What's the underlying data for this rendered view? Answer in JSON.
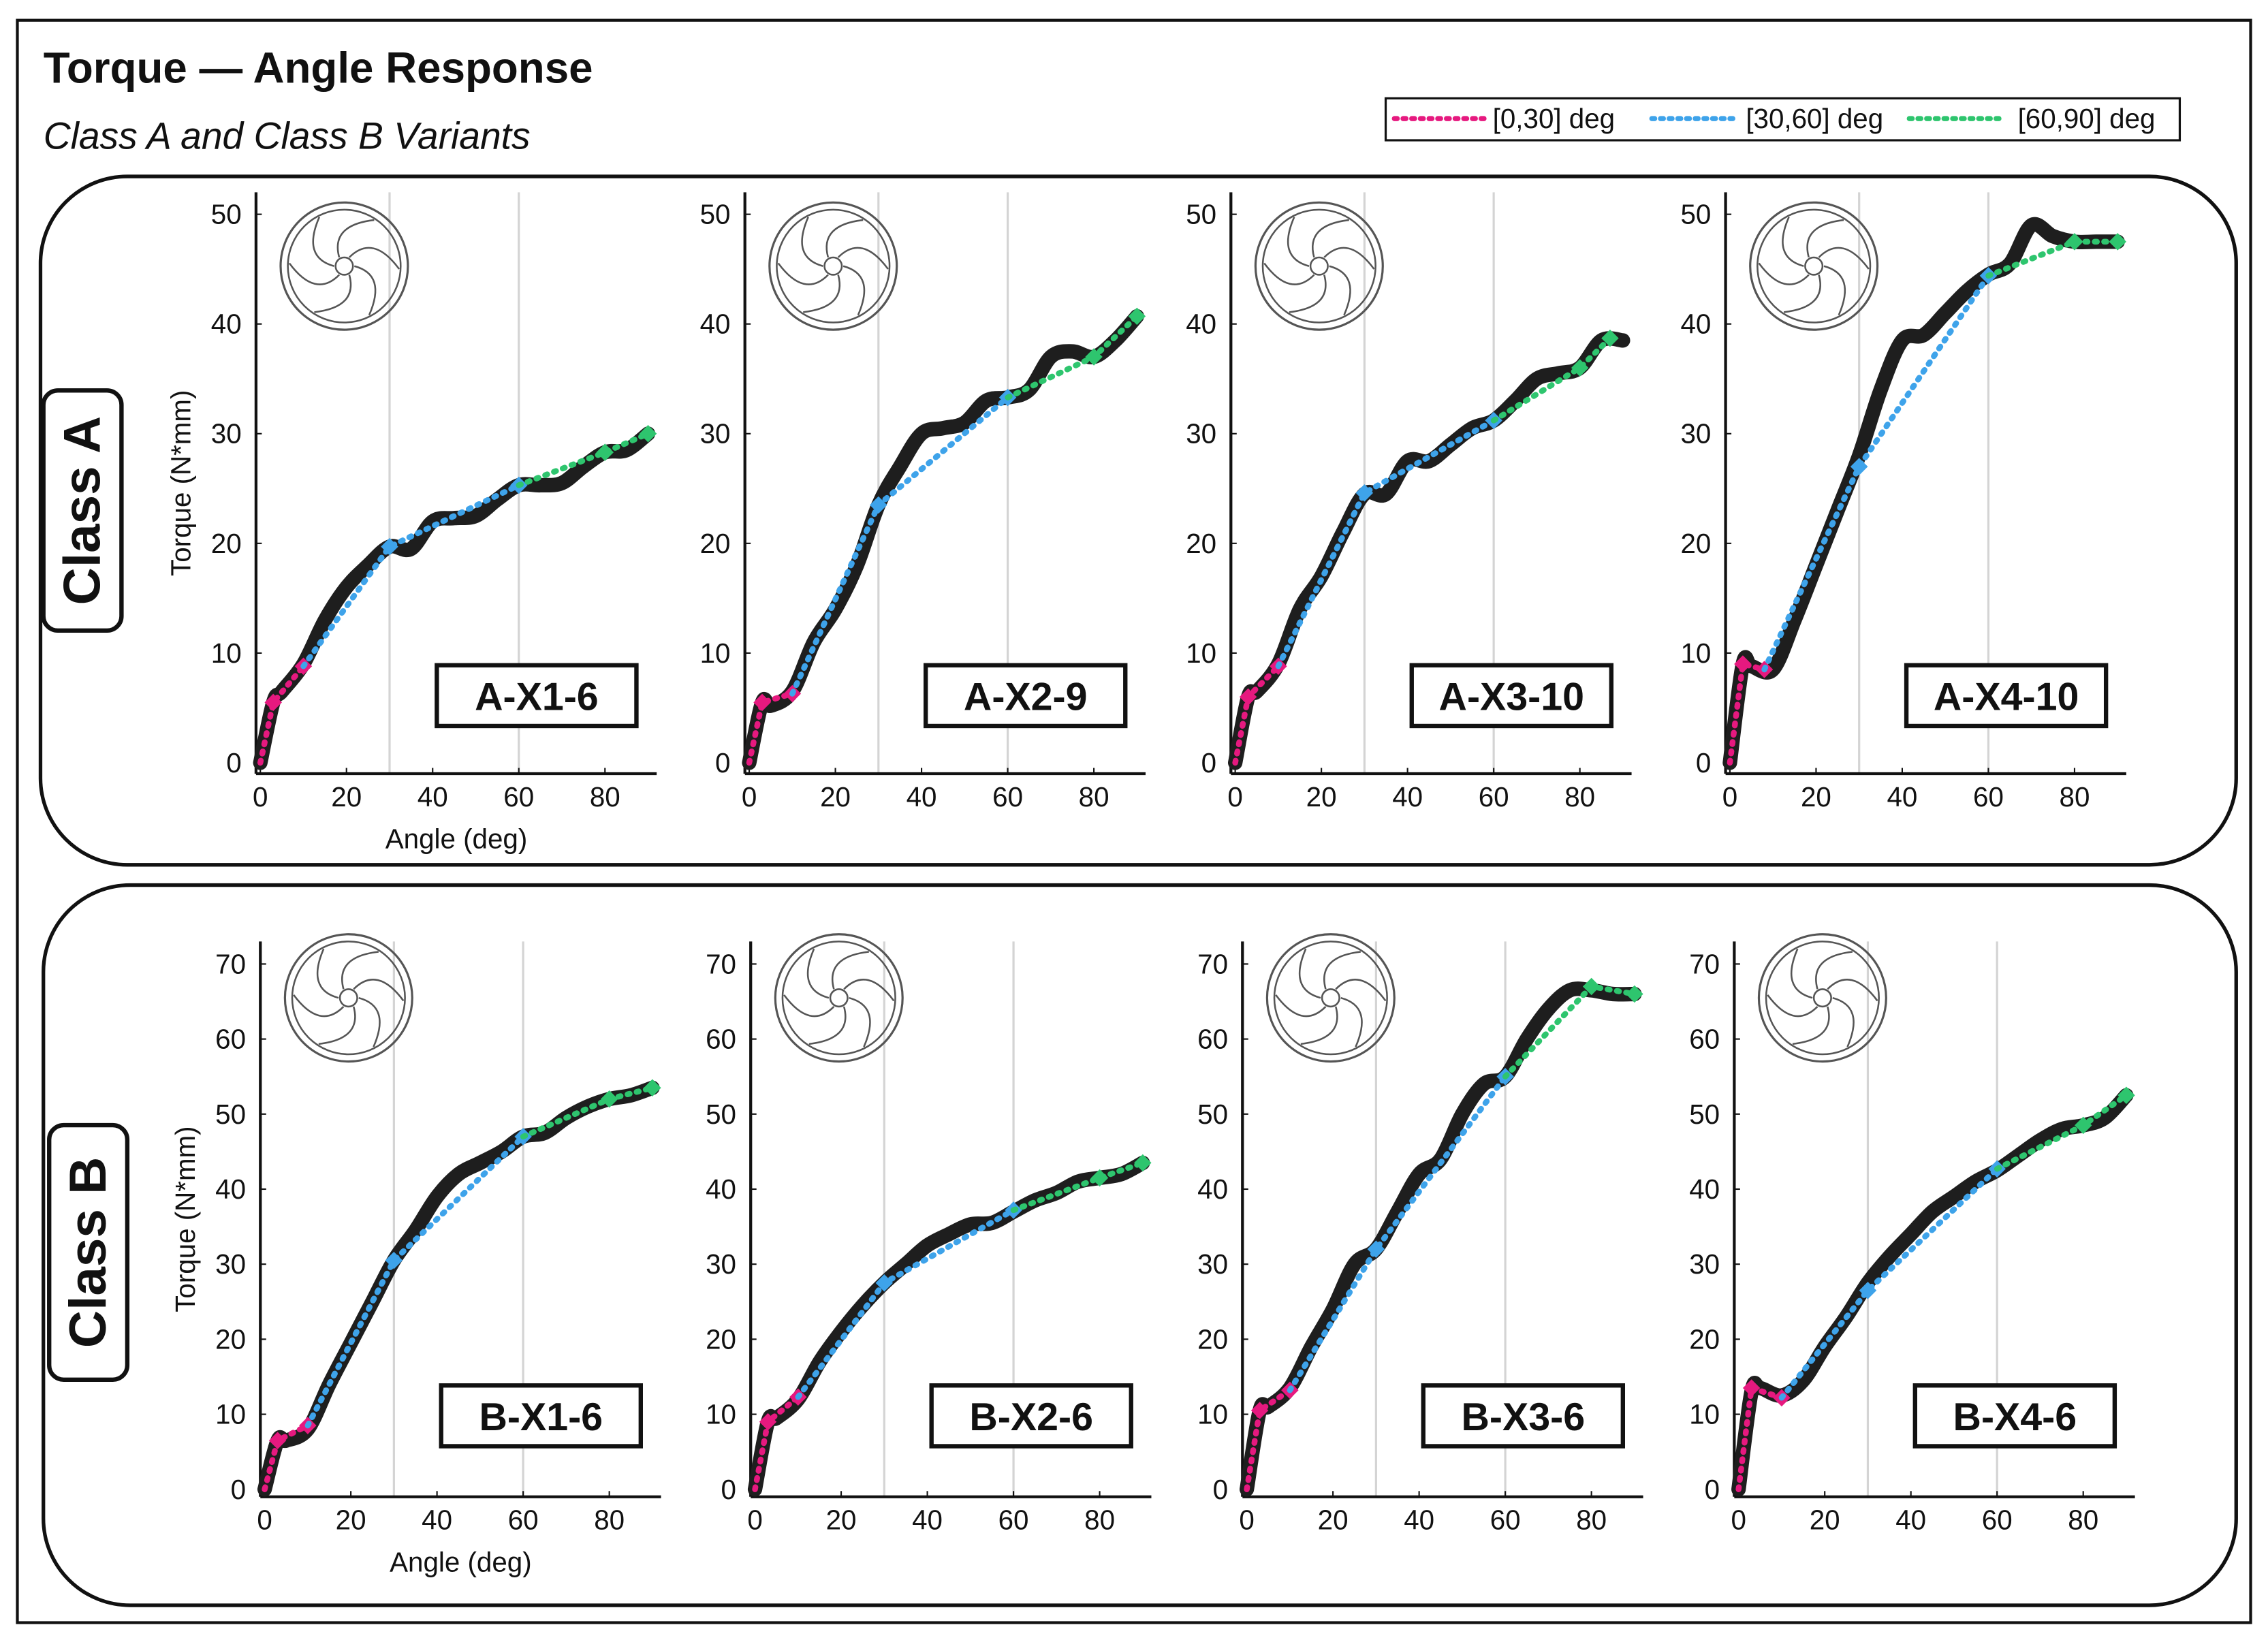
{
  "title": "Torque — Angle Response",
  "subtitle": "Class A and Class B Variants",
  "row_labels": [
    "Class A",
    "Class B"
  ],
  "chart_data": [
    {
      "type": "line",
      "title": "A-X1-6",
      "x_label": "Angle (deg)",
      "y_label": "Torque (N*mm)",
      "xlim": [
        -1,
        92
      ],
      "xticks": [
        0,
        20,
        40,
        60,
        80
      ],
      "ylim": [
        -1,
        52
      ],
      "yticks": [
        0,
        10,
        20,
        30,
        40,
        50
      ],
      "vlines": [
        30,
        60
      ],
      "x": [
        0,
        3,
        5,
        10,
        15,
        20,
        25,
        30,
        35,
        40,
        45,
        50,
        55,
        60,
        65,
        70,
        75,
        80,
        85,
        90
      ],
      "series": [
        {
          "color": "#1e1e1e",
          "style": "solid",
          "values": [
            0,
            5.5,
            6.5,
            9,
            13,
            16,
            18,
            19.7,
            19.5,
            22,
            22.3,
            22.5,
            24,
            25.3,
            25.3,
            25.5,
            27,
            28.3,
            28.5,
            30
          ]
        },
        {
          "name": "[0,30] deg",
          "color": "#e6197f",
          "style": "dotted",
          "x": [
            0,
            3,
            10
          ],
          "values": [
            0,
            5.5,
            8.8
          ]
        },
        {
          "name": "[30,60] deg",
          "color": "#3ea3ea",
          "style": "dotted",
          "x": [
            10,
            30,
            60
          ],
          "values": [
            8.8,
            19.7,
            25.3
          ]
        },
        {
          "name": "[60,90] deg",
          "color": "#2ec56e",
          "style": "dotted",
          "x": [
            60,
            80,
            90
          ],
          "values": [
            25.3,
            28.3,
            30
          ]
        }
      ]
    },
    {
      "type": "line",
      "title": "A-X2-9",
      "xlim": [
        -1,
        92
      ],
      "xticks": [
        0,
        20,
        40,
        60,
        80
      ],
      "ylim": [
        -1,
        52
      ],
      "yticks": [
        0,
        10,
        20,
        30,
        40,
        50
      ],
      "vlines": [
        30,
        60
      ],
      "x": [
        0,
        3,
        5,
        10,
        15,
        20,
        25,
        30,
        35,
        40,
        45,
        50,
        55,
        60,
        65,
        70,
        75,
        80,
        85,
        90
      ],
      "series": [
        {
          "color": "#1e1e1e",
          "style": "solid",
          "values": [
            0,
            5.5,
            5.2,
            6.5,
            11,
            14,
            18,
            23.5,
            27,
            30,
            30.5,
            31,
            33,
            33.3,
            34,
            37,
            37.5,
            37,
            38.5,
            40.7
          ]
        },
        {
          "name": "[0,30] deg",
          "color": "#e6197f",
          "style": "dotted",
          "x": [
            0,
            3,
            10
          ],
          "values": [
            0,
            5.5,
            6.3
          ]
        },
        {
          "name": "[30,60] deg",
          "color": "#3ea3ea",
          "style": "dotted",
          "x": [
            10,
            30,
            60
          ],
          "values": [
            6.3,
            23.5,
            33.3
          ]
        },
        {
          "name": "[60,90] deg",
          "color": "#2ec56e",
          "style": "dotted",
          "x": [
            60,
            80,
            90
          ],
          "values": [
            33.3,
            37,
            40.7
          ]
        }
      ]
    },
    {
      "type": "line",
      "title": "A-X3-10",
      "xlim": [
        -1,
        92
      ],
      "xticks": [
        0,
        20,
        40,
        60,
        80
      ],
      "ylim": [
        -1,
        52
      ],
      "yticks": [
        0,
        10,
        20,
        30,
        40,
        50
      ],
      "vlines": [
        30,
        60
      ],
      "x": [
        0,
        3,
        5,
        10,
        15,
        20,
        25,
        30,
        35,
        40,
        45,
        50,
        55,
        60,
        65,
        70,
        75,
        80,
        85,
        90
      ],
      "series": [
        {
          "color": "#1e1e1e",
          "style": "solid",
          "values": [
            0,
            6,
            6.5,
            9,
            14,
            17,
            21,
            24.5,
            24.5,
            27.5,
            27.5,
            29,
            30.5,
            31.2,
            33,
            35,
            35.5,
            36,
            38.5,
            38.5
          ]
        },
        {
          "name": "[0,30] deg",
          "color": "#e6197f",
          "style": "dotted",
          "x": [
            0,
            3,
            10
          ],
          "values": [
            0,
            6,
            8.8
          ]
        },
        {
          "name": "[30,60] deg",
          "color": "#3ea3ea",
          "style": "dotted",
          "x": [
            10,
            30,
            60
          ],
          "values": [
            8.8,
            24.6,
            31.2
          ]
        },
        {
          "name": "[60,90] deg",
          "color": "#2ec56e",
          "style": "dotted",
          "x": [
            60,
            80,
            87
          ],
          "values": [
            31.2,
            36,
            38.7
          ]
        }
      ]
    },
    {
      "type": "line",
      "title": "A-X4-10",
      "xlim": [
        -1,
        92
      ],
      "xticks": [
        0,
        20,
        40,
        60,
        80
      ],
      "ylim": [
        -1,
        52
      ],
      "yticks": [
        0,
        10,
        20,
        30,
        40,
        50
      ],
      "vlines": [
        30,
        60
      ],
      "x": [
        0,
        3,
        5,
        10,
        15,
        20,
        25,
        30,
        35,
        40,
        45,
        50,
        55,
        60,
        65,
        70,
        75,
        80,
        85,
        90
      ],
      "series": [
        {
          "color": "#1e1e1e",
          "style": "solid",
          "values": [
            0,
            9,
            8.8,
            8.5,
            13,
            18,
            23,
            28,
            34,
            38.5,
            39,
            41,
            43,
            44.5,
            45.5,
            49,
            48,
            47.5,
            47.5,
            47.5
          ]
        },
        {
          "name": "[0,30] deg",
          "color": "#e6197f",
          "style": "dotted",
          "x": [
            0,
            3,
            8
          ],
          "values": [
            0,
            9,
            8.5
          ]
        },
        {
          "name": "[30,60] deg",
          "color": "#3ea3ea",
          "style": "dotted",
          "x": [
            8,
            30,
            60
          ],
          "values": [
            8.5,
            27,
            44.4
          ]
        },
        {
          "name": "[60,90] deg",
          "color": "#2ec56e",
          "style": "dotted",
          "x": [
            60,
            80,
            90
          ],
          "values": [
            44.4,
            47.5,
            47.5
          ]
        }
      ]
    },
    {
      "type": "line",
      "title": "B-X1-6",
      "x_label": "Angle (deg)",
      "y_label": "Torque (N*mm)",
      "xlim": [
        -1,
        92
      ],
      "xticks": [
        0,
        20,
        40,
        60,
        80
      ],
      "ylim": [
        -1,
        73
      ],
      "yticks": [
        0,
        10,
        20,
        30,
        40,
        50,
        60,
        70
      ],
      "vlines": [
        30,
        60
      ],
      "x": [
        0,
        3,
        5,
        10,
        15,
        20,
        25,
        30,
        35,
        40,
        45,
        50,
        55,
        60,
        65,
        70,
        75,
        80,
        85,
        90
      ],
      "series": [
        {
          "color": "#1e1e1e",
          "style": "solid",
          "values": [
            0,
            6.5,
            6.5,
            8,
            14,
            19.5,
            25,
            30.5,
            34.5,
            39,
            42,
            43.5,
            45,
            47,
            47.5,
            49.5,
            51,
            52,
            52.5,
            53.5
          ]
        },
        {
          "name": "[0,30] deg",
          "color": "#e6197f",
          "style": "dotted",
          "x": [
            0,
            3,
            10
          ],
          "values": [
            0,
            6.5,
            8.5
          ]
        },
        {
          "name": "[30,60] deg",
          "color": "#3ea3ea",
          "style": "dotted",
          "x": [
            10,
            30,
            60
          ],
          "values": [
            8.5,
            30.5,
            47
          ]
        },
        {
          "name": "[60,90] deg",
          "color": "#2ec56e",
          "style": "dotted",
          "x": [
            60,
            80,
            90
          ],
          "values": [
            47,
            52,
            53.5
          ]
        }
      ]
    },
    {
      "type": "line",
      "title": "B-X2-6",
      "xlim": [
        -1,
        92
      ],
      "xticks": [
        0,
        20,
        40,
        60,
        80
      ],
      "ylim": [
        -1,
        73
      ],
      "yticks": [
        0,
        10,
        20,
        30,
        40,
        50,
        60,
        70
      ],
      "vlines": [
        30,
        60
      ],
      "x": [
        0,
        3,
        5,
        10,
        15,
        20,
        25,
        30,
        35,
        40,
        45,
        50,
        55,
        60,
        65,
        70,
        75,
        80,
        85,
        90
      ],
      "series": [
        {
          "color": "#1e1e1e",
          "style": "solid",
          "values": [
            0,
            9,
            9.5,
            12,
            17,
            21,
            24.5,
            27.5,
            30,
            32.5,
            34,
            35.3,
            35.5,
            37,
            38.5,
            39.5,
            41,
            41.5,
            42,
            43.5
          ]
        },
        {
          "name": "[0,30] deg",
          "color": "#e6197f",
          "style": "dotted",
          "x": [
            0,
            3,
            10
          ],
          "values": [
            0,
            9,
            12.3
          ]
        },
        {
          "name": "[30,60] deg",
          "color": "#3ea3ea",
          "style": "dotted",
          "x": [
            10,
            30,
            60
          ],
          "values": [
            12.3,
            27.5,
            37.2
          ]
        },
        {
          "name": "[60,90] deg",
          "color": "#2ec56e",
          "style": "dotted",
          "x": [
            60,
            80,
            90
          ],
          "values": [
            37.2,
            41.5,
            43.5
          ]
        }
      ]
    },
    {
      "type": "line",
      "title": "B-X3-6",
      "xlim": [
        -1,
        92
      ],
      "xticks": [
        0,
        20,
        40,
        60,
        80
      ],
      "ylim": [
        -1,
        73
      ],
      "yticks": [
        0,
        10,
        20,
        30,
        40,
        50,
        60,
        70
      ],
      "vlines": [
        30,
        60
      ],
      "x": [
        0,
        3,
        5,
        10,
        15,
        20,
        25,
        30,
        35,
        40,
        45,
        50,
        55,
        60,
        65,
        70,
        75,
        80,
        85,
        90
      ],
      "series": [
        {
          "color": "#1e1e1e",
          "style": "solid",
          "values": [
            0,
            10.5,
            11,
            13.5,
            19,
            24,
            30,
            32,
            37,
            42,
            44,
            50,
            54,
            55,
            60,
            64,
            66.5,
            66.5,
            66,
            66
          ]
        },
        {
          "name": "[0,30] deg",
          "color": "#e6197f",
          "style": "dotted",
          "x": [
            0,
            3,
            10
          ],
          "values": [
            0,
            10.5,
            13.2
          ]
        },
        {
          "name": "[30,60] deg",
          "color": "#3ea3ea",
          "style": "dotted",
          "x": [
            10,
            30,
            60
          ],
          "values": [
            13.2,
            32,
            55
          ]
        },
        {
          "name": "[60,90] deg",
          "color": "#2ec56e",
          "style": "dotted",
          "x": [
            60,
            80,
            90
          ],
          "values": [
            55,
            67,
            66
          ]
        }
      ]
    },
    {
      "type": "line",
      "title": "B-X4-6",
      "xlim": [
        -1,
        92
      ],
      "xticks": [
        0,
        20,
        40,
        60,
        80
      ],
      "ylim": [
        -1,
        73
      ],
      "yticks": [
        0,
        10,
        20,
        30,
        40,
        50,
        60,
        70
      ],
      "vlines": [
        30,
        60
      ],
      "x": [
        0,
        3,
        5,
        10,
        15,
        20,
        25,
        30,
        35,
        40,
        45,
        50,
        55,
        60,
        65,
        70,
        75,
        80,
        85,
        90
      ],
      "series": [
        {
          "color": "#1e1e1e",
          "style": "solid",
          "values": [
            0,
            13,
            13.5,
            12.5,
            14.5,
            19,
            23,
            27.5,
            31,
            34,
            37,
            39,
            41,
            42.5,
            44.5,
            46.5,
            48,
            48.5,
            49.5,
            52.5
          ]
        },
        {
          "name": "[0,30] deg",
          "color": "#e6197f",
          "style": "dotted",
          "x": [
            0,
            3,
            10
          ],
          "values": [
            0,
            13.5,
            12.2
          ]
        },
        {
          "name": "[30,60] deg",
          "color": "#3ea3ea",
          "style": "dotted",
          "x": [
            10,
            30,
            60
          ],
          "values": [
            12.2,
            26.5,
            42.7
          ]
        },
        {
          "name": "[60,90] deg",
          "color": "#2ec56e",
          "style": "dotted",
          "x": [
            60,
            80,
            90
          ],
          "values": [
            42.7,
            48.5,
            52.5
          ]
        }
      ]
    }
  ]
}
